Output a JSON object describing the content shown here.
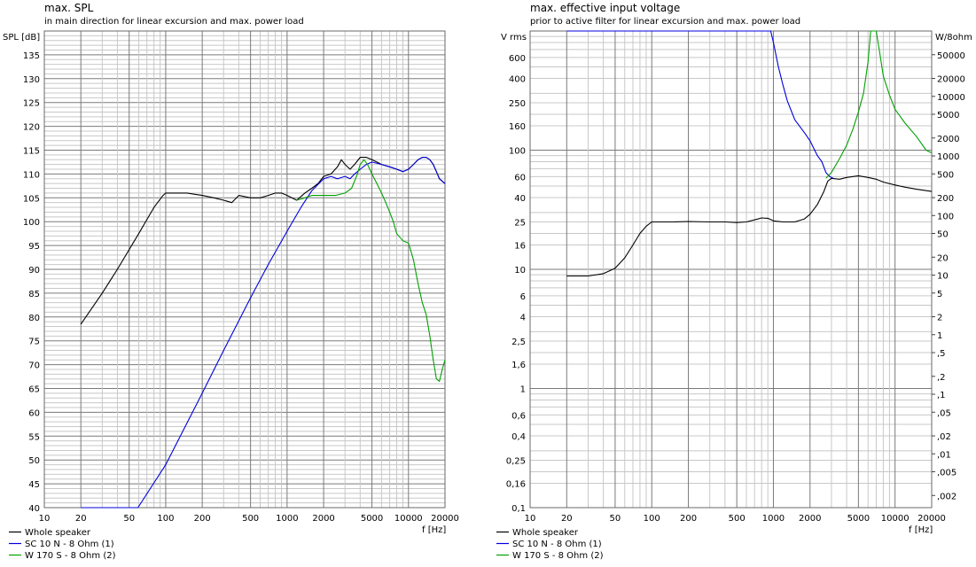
{
  "colors": {
    "background": "#ffffff",
    "grid_major": "#7a7a7a",
    "grid_minor": "#c8c8c8",
    "whole": "#000000",
    "sc10n": "#0000dd",
    "w170s": "#00a000"
  },
  "chart_data": [
    {
      "id": "spl",
      "type": "line",
      "title": "max. SPL",
      "subtitle": "in main direction for linear excursion and max. power load",
      "ylabel": "SPL [dB]",
      "xlabel": "f [Hz]",
      "xscale": "log",
      "xlim": [
        10,
        20000
      ],
      "ylim": [
        40,
        140
      ],
      "x_ticks": [
        10,
        20,
        50,
        100,
        200,
        500,
        1000,
        2000,
        5000,
        10000,
        20000
      ],
      "x_tick_labels": [
        "10",
        "20",
        "50",
        "100",
        "200",
        "500",
        "1000",
        "2000",
        "5000",
        "10000",
        "20000"
      ],
      "y_ticks": [
        40,
        45,
        50,
        55,
        60,
        65,
        70,
        75,
        80,
        85,
        90,
        95,
        100,
        105,
        110,
        115,
        120,
        125,
        130,
        135
      ],
      "y_tick_labels": [
        "40",
        "45",
        "50",
        "55",
        "60",
        "65",
        "70",
        "75",
        "80",
        "85",
        "90",
        "95",
        "100",
        "105",
        "110",
        "115",
        "120",
        "125",
        "130",
        "135"
      ],
      "legend": [
        "Whole speaker",
        "SC 10 N - 8 Ohm (1)",
        "W 170 S - 8 Ohm (2)"
      ],
      "legend_position": "bottom-left",
      "series": [
        {
          "name": "Whole speaker",
          "color": "#000000",
          "x": [
            20,
            30,
            40,
            60,
            80,
            95,
            100,
            150,
            200,
            250,
            300,
            350,
            400,
            500,
            600,
            700,
            800,
            900,
            1000,
            1200,
            1400,
            1600,
            1800,
            2000,
            2300,
            2600,
            2800,
            3000,
            3300,
            3600,
            4000,
            4500,
            5000,
            5500,
            6000,
            7000,
            8000,
            9000,
            10000,
            11000,
            12000,
            13000,
            14000,
            15000,
            16000,
            17000,
            18000,
            20000
          ],
          "y": [
            78.5,
            85,
            90,
            97.5,
            103,
            105.5,
            106,
            106,
            105.5,
            105,
            104.5,
            104,
            105.5,
            105,
            105,
            105.5,
            106,
            106,
            105.5,
            104.5,
            106,
            107,
            108,
            109.5,
            110,
            111.5,
            113,
            112,
            111,
            112,
            113.5,
            113.5,
            113,
            112.5,
            112,
            111.5,
            111,
            110.5,
            111,
            112,
            113,
            113.5,
            113.5,
            113,
            112,
            110.5,
            109,
            108
          ]
        },
        {
          "name": "SC 10 N - 8 Ohm (1)",
          "color": "#0000dd",
          "x": [
            20,
            59,
            100,
            200,
            300,
            500,
            700,
            1000,
            1300,
            1600,
            2000,
            2300,
            2600,
            3000,
            3300,
            3600,
            4000,
            4500,
            5000,
            6000,
            7000,
            8000,
            9000,
            10000,
            11000,
            12000,
            13000,
            14000,
            15000,
            16000,
            17000,
            18000,
            20000
          ],
          "y": [
            40,
            40,
            49,
            64,
            73,
            84,
            91,
            98,
            103,
            106.5,
            109,
            109.5,
            109,
            109.5,
            109,
            110,
            111,
            112,
            112.5,
            112,
            111.5,
            111,
            110.5,
            111,
            112,
            113,
            113.5,
            113.5,
            113,
            112,
            110.5,
            109,
            108
          ]
        },
        {
          "name": "W 170 S - 8 Ohm (2)",
          "color": "#00a000",
          "x": [
            1200,
            1400,
            1600,
            1800,
            2000,
            2500,
            3000,
            3400,
            3800,
            4000,
            4300,
            4600,
            5000,
            5500,
            6000,
            6500,
            7000,
            7500,
            8000,
            9000,
            10000,
            11000,
            12000,
            13000,
            14000,
            15000,
            16000,
            17000,
            18000,
            19000,
            20000
          ],
          "y": [
            104.5,
            105,
            105.5,
            105.5,
            105.5,
            105.5,
            106,
            107,
            110,
            112,
            113,
            112,
            110,
            108,
            106,
            104,
            102,
            100,
            97.5,
            96,
            95.5,
            92,
            87,
            83,
            80.5,
            76,
            71,
            67,
            66.5,
            69,
            71
          ]
        }
      ]
    },
    {
      "id": "voltage",
      "type": "line",
      "title": "max. effective input voltage",
      "subtitle": "prior to active filter for linear excursion and max. power load",
      "ylabel": "V rms",
      "ylabel_right": "W/8ohm",
      "xlabel": "f [Hz]",
      "xscale": "log",
      "yscale": "log",
      "xlim": [
        10,
        20000
      ],
      "ylim": [
        0.1,
        1000
      ],
      "x_ticks": [
        10,
        20,
        50,
        100,
        200,
        500,
        1000,
        2000,
        5000,
        10000,
        20000
      ],
      "x_tick_labels": [
        "10",
        "20",
        "50",
        "100",
        "200",
        "500",
        "1000",
        "2000",
        "5000",
        "10000",
        "20000"
      ],
      "y_ticks": [
        0.1,
        0.16,
        0.25,
        0.4,
        0.6,
        1,
        1.6,
        2.5,
        4,
        6,
        10,
        16,
        25,
        40,
        60,
        100,
        160,
        250,
        400,
        600
      ],
      "y_tick_labels": [
        "0,1",
        "0,16",
        "0,25",
        "0,4",
        "0,6",
        "1",
        "1,6",
        "2,5",
        "4",
        "6",
        "10",
        "16",
        "25",
        "40",
        "60",
        "100",
        "160",
        "250",
        "400",
        "600"
      ],
      "y_top_label": "V rms",
      "right_ticks": [
        50000,
        20000,
        10000,
        5000,
        2000,
        1000,
        500,
        200,
        100,
        50,
        20,
        10,
        5,
        2,
        1,
        0.5,
        0.2,
        0.1,
        0.05,
        0.02,
        0.01,
        0.005,
        0.002
      ],
      "right_tick_labels": [
        "50000",
        "20000",
        "10000",
        "5000",
        "2000",
        "1000",
        "500",
        "200",
        "100",
        "50",
        "20",
        "10",
        "5",
        "2",
        "1",
        ",5",
        ",2",
        ",1",
        ",05",
        ",02",
        ",01",
        ",005",
        ",002"
      ],
      "legend": [
        "Whole speaker",
        "SC 10 N - 8 Ohm (1)",
        "W 170 S - 8 Ohm (2)"
      ],
      "legend_position": "bottom-left",
      "series": [
        {
          "name": "Whole speaker",
          "color": "#000000",
          "x": [
            20,
            30,
            40,
            50,
            60,
            70,
            80,
            90,
            100,
            150,
            200,
            300,
            400,
            500,
            600,
            700,
            800,
            900,
            1000,
            1200,
            1500,
            1800,
            2000,
            2300,
            2600,
            2800,
            3000,
            3500,
            4000,
            5000,
            6000,
            7000,
            8000,
            10000,
            12000,
            15000,
            20000
          ],
          "y": [
            8.8,
            8.8,
            9.2,
            10.2,
            12.5,
            16,
            20,
            23,
            25,
            25,
            25.2,
            25,
            25,
            24.7,
            25,
            26,
            27,
            26.8,
            25.5,
            25,
            25,
            26.5,
            29,
            35,
            45,
            55,
            58,
            57,
            59,
            61,
            59,
            57,
            54,
            51,
            49,
            47,
            45
          ]
        },
        {
          "name": "SC 10 N - 8 Ohm (1)",
          "color": "#0000dd",
          "x": [
            20,
            950,
            1000,
            1100,
            1200,
            1300,
            1500,
            1800,
            2000,
            2300,
            2500,
            2700,
            2900,
            3100
          ],
          "y": [
            1000,
            1000,
            800,
            500,
            350,
            260,
            180,
            140,
            120,
            90,
            80,
            65,
            60,
            58
          ]
        },
        {
          "name": "W 170 S - 8 Ohm (2)",
          "color": "#00a000",
          "x": [
            2700,
            3000,
            3500,
            4000,
            4500,
            5000,
            5500,
            6000,
            6300,
            7000,
            7500,
            8000,
            9000,
            10000,
            12000,
            15000,
            18000,
            20000
          ],
          "y": [
            58,
            65,
            85,
            110,
            150,
            210,
            300,
            550,
            1000,
            1000,
            650,
            420,
            290,
            220,
            170,
            130,
            100,
            95
          ]
        }
      ]
    }
  ]
}
